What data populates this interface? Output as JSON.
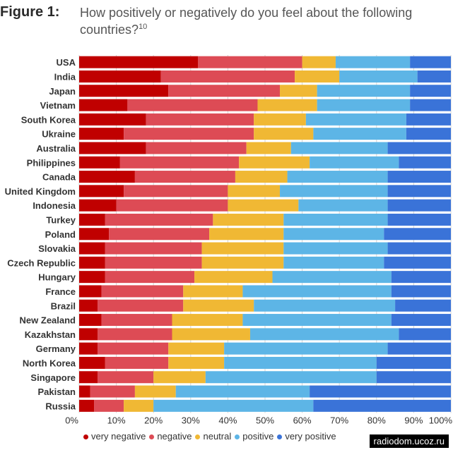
{
  "figure_label": "Figure 1:",
  "watermark": "radiodom.ucoz.ru",
  "chart_data": {
    "type": "bar",
    "orientation": "horizontal",
    "stacked": true,
    "title": "How positively or negatively do you feel about the following countries?",
    "title_superscript": "10",
    "xlabel": "",
    "ylabel": "",
    "xlim": [
      0,
      100
    ],
    "x_ticks": [
      "0%",
      "10%",
      "20%",
      "30%",
      "40%",
      "50%",
      "60%",
      "70%",
      "80%",
      "90%",
      "100%"
    ],
    "legend_position": "bottom",
    "categories": [
      "USA",
      "India",
      "Japan",
      "Vietnam",
      "South Korea",
      "Ukraine",
      "Australia",
      "Philippines",
      "Canada",
      "United Kingdom",
      "Indonesia",
      "Turkey",
      "Poland",
      "Slovakia",
      "Czech Republic",
      "Hungary",
      "France",
      "Brazil",
      "New Zealand",
      "Kazakhstan",
      "Germany",
      "North Korea",
      "Singapore",
      "Pakistan",
      "Russia"
    ],
    "series": [
      {
        "name": "very negative",
        "color": "#c00000",
        "values": [
          32,
          22,
          24,
          13,
          18,
          12,
          18,
          11,
          15,
          12,
          10,
          7,
          8,
          7,
          7,
          7,
          6,
          5,
          6,
          5,
          5,
          7,
          5,
          3,
          4
        ]
      },
      {
        "name": "negative",
        "color": "#dd4b55",
        "values": [
          28,
          36,
          30,
          35,
          29,
          35,
          27,
          32,
          27,
          28,
          30,
          29,
          27,
          26,
          26,
          24,
          22,
          23,
          19,
          20,
          19,
          17,
          15,
          12,
          8
        ]
      },
      {
        "name": "neutral",
        "color": "#f0b834",
        "values": [
          9,
          12,
          10,
          16,
          14,
          16,
          12,
          19,
          14,
          14,
          19,
          19,
          20,
          22,
          22,
          21,
          16,
          19,
          19,
          21,
          15,
          15,
          14,
          11,
          8
        ]
      },
      {
        "name": "positive",
        "color": "#5db5e6",
        "values": [
          20,
          21,
          25,
          25,
          27,
          25,
          26,
          24,
          27,
          29,
          24,
          28,
          27,
          28,
          27,
          32,
          40,
          38,
          40,
          40,
          44,
          41,
          46,
          36,
          43
        ]
      },
      {
        "name": "very positive",
        "color": "#3a73d8",
        "values": [
          11,
          9,
          11,
          11,
          12,
          12,
          17,
          14,
          17,
          17,
          17,
          17,
          18,
          17,
          18,
          16,
          16,
          15,
          16,
          14,
          17,
          20,
          20,
          38,
          37
        ]
      }
    ]
  }
}
